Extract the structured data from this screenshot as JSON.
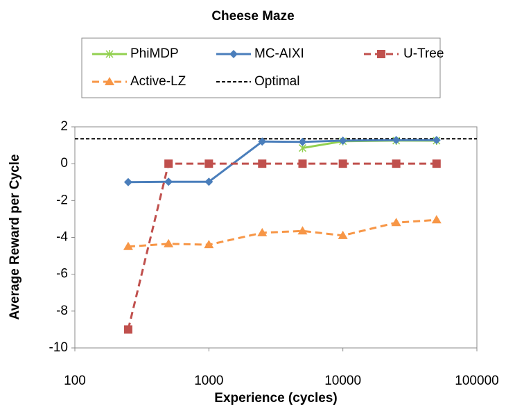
{
  "chart_data": {
    "type": "line",
    "title": "Cheese Maze",
    "xlabel": "Experience (cycles)",
    "ylabel": "Average Reward per Cycle",
    "x": [
      250,
      500,
      1000,
      2500,
      5000,
      10000,
      25000,
      50000
    ],
    "series": [
      {
        "name": "PhiMDP",
        "color": "#92d050",
        "marker": "asterisk",
        "dash": false,
        "values": [
          null,
          null,
          null,
          null,
          0.85,
          1.22,
          1.25,
          1.25
        ]
      },
      {
        "name": "MC-AIXI",
        "color": "#4a7ebb",
        "marker": "diamond",
        "dash": false,
        "values": [
          -1.0,
          -0.98,
          -0.98,
          1.2,
          1.18,
          1.25,
          1.28,
          1.28
        ]
      },
      {
        "name": "U-Tree",
        "color": "#c0504d",
        "marker": "square",
        "dash": true,
        "values": [
          -9,
          0,
          0,
          0,
          0,
          0,
          0,
          0
        ]
      },
      {
        "name": "Active-LZ",
        "color": "#f79646",
        "marker": "triangle",
        "dash": true,
        "values": [
          -4.5,
          -4.35,
          -4.4,
          -3.75,
          -3.65,
          -3.9,
          -3.2,
          -3.05
        ]
      }
    ],
    "reference": {
      "name": "Optimal",
      "color": "#000000",
      "value": 1.35
    },
    "xlim": [
      100,
      100000
    ],
    "xticks": [
      100,
      1000,
      10000,
      100000
    ],
    "xscale": "log",
    "ylim": [
      -10,
      2
    ],
    "yticks": [
      -10,
      -8,
      -6,
      -4,
      -2,
      0,
      2
    ],
    "grid": false
  }
}
